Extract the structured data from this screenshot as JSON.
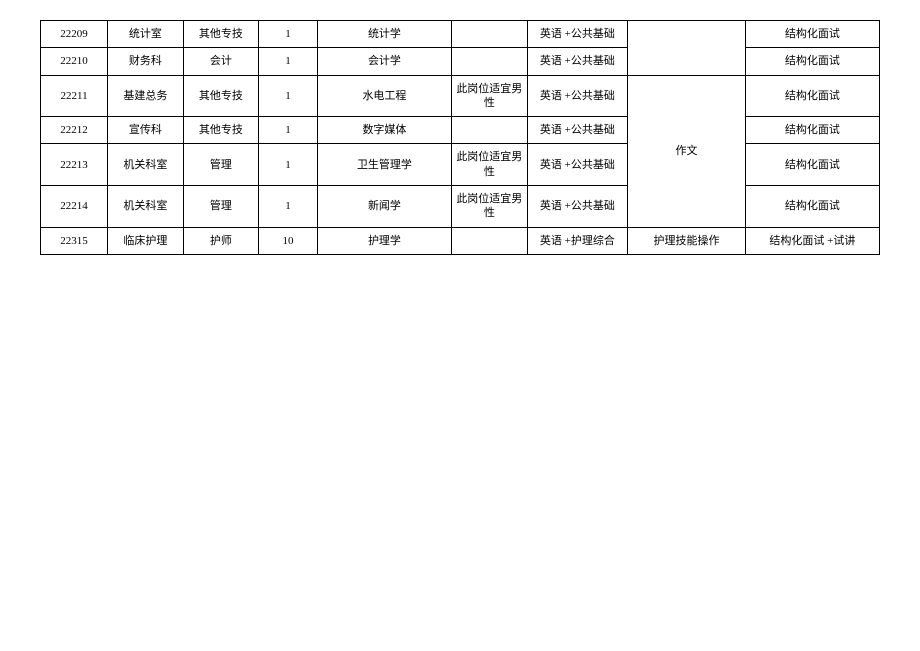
{
  "table": {
    "columns": [
      "code",
      "dept",
      "type",
      "num",
      "major",
      "note",
      "exam1",
      "exam2",
      "interview"
    ],
    "rows": [
      {
        "code": "22209",
        "dept": "统计室",
        "type": "其他专技",
        "num": "1",
        "major": "统计学",
        "note": "",
        "exam1": "英语 +公共基础",
        "interview": "结构化面试"
      },
      {
        "code": "22210",
        "dept": "财务科",
        "type": "会计",
        "num": "1",
        "major": "会计学",
        "note": "",
        "exam1": "英语 +公共基础",
        "interview": "结构化面试"
      },
      {
        "code": "22211",
        "dept": "基建总务",
        "type": "其他专技",
        "num": "1",
        "major": "水电工程",
        "note": "此岗位适宜男性",
        "exam1": "英语 +公共基础",
        "interview": "结构化面试"
      },
      {
        "code": "22212",
        "dept": "宣传科",
        "type": "其他专技",
        "num": "1",
        "major": "数字媒体",
        "note": "",
        "exam1": "英语 +公共基础",
        "interview": "结构化面试"
      },
      {
        "code": "22213",
        "dept": "机关科室",
        "type": "管理",
        "num": "1",
        "major": "卫生管理学",
        "note": "此岗位适宜男性",
        "exam1": "英语 +公共基础",
        "interview": "结构化面试"
      },
      {
        "code": "22214",
        "dept": "机关科室",
        "type": "管理",
        "num": "1",
        "major": "新闻学",
        "note": "此岗位适宜男性",
        "exam1": "英语 +公共基础",
        "interview": "结构化面试"
      },
      {
        "code": "22315",
        "dept": "临床护理",
        "type": "护师",
        "num": "10",
        "major": "护理学",
        "note": "",
        "exam1": "英语 +护理综合",
        "exam2": "护理技能操作",
        "interview": "结构化面试 +试讲"
      }
    ],
    "merged_exam2_group1": "",
    "merged_exam2_group2": "作文",
    "colors": {
      "border": "#000000",
      "background": "#ffffff",
      "text": "#000000"
    },
    "font_size": 11
  }
}
